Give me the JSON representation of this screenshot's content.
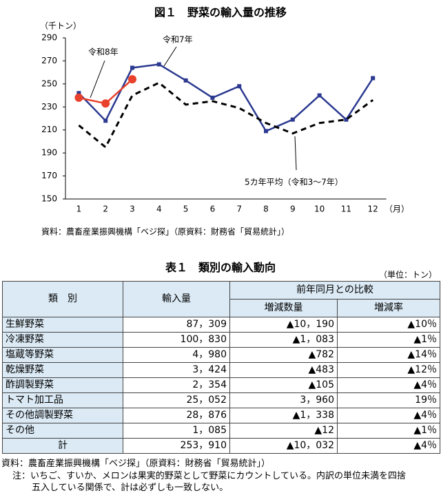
{
  "chart_data": {
    "type": "line",
    "title": "図１　野菜の輸入量の推移",
    "y_label": "（千トン）",
    "x_label": "（月）",
    "categories": [
      "1",
      "2",
      "3",
      "4",
      "5",
      "6",
      "7",
      "8",
      "9",
      "10",
      "11",
      "12"
    ],
    "ylim": [
      150,
      290
    ],
    "yticks": [
      150,
      170,
      190,
      210,
      230,
      250,
      270,
      290
    ],
    "series": [
      {
        "name": "令和7年",
        "color": "#2b3990",
        "marker": "square",
        "dash": false,
        "values": [
          242,
          218,
          264,
          267,
          253,
          238,
          248,
          209,
          219,
          240,
          219,
          255
        ]
      },
      {
        "name": "令和8年",
        "color": "#e8412c",
        "marker": "circle",
        "dash": false,
        "values": [
          238,
          233,
          254,
          null,
          null,
          null,
          null,
          null,
          null,
          null,
          null,
          null
        ]
      },
      {
        "name": "5カ年平均（令和3～7年）",
        "color": "#000000",
        "marker": "none",
        "dash": true,
        "values": [
          214,
          195,
          240,
          251,
          232,
          235,
          229,
          216,
          207,
          216,
          219,
          236
        ]
      }
    ],
    "source": "資料：農畜産業振興機構「ベジ探」（原資料：財務省「貿易統計」）"
  },
  "table": {
    "title": "表１　類別の輸入動向",
    "unit": "（単位：トン）",
    "header": {
      "category": "類　別",
      "quantity": "輸入量",
      "compare": "前年同月との比較",
      "change": "増減数量",
      "rate": "増減率"
    },
    "rows": [
      [
        "生鮮野菜",
        "87，309",
        "▲10，190",
        "▲10％"
      ],
      [
        "冷凍野菜",
        "100，830",
        "▲1，083",
        "▲1％"
      ],
      [
        "塩蔵等野菜",
        "4，980",
        "▲782",
        "▲14％"
      ],
      [
        "乾燥野菜",
        "3，424",
        "▲483",
        "▲12％"
      ],
      [
        "酢調製野菜",
        "2，354",
        "▲105",
        "▲4％"
      ],
      [
        "トマト加工品",
        "25，052",
        "3，960",
        "19％"
      ],
      [
        "その他調製野菜",
        "28，876",
        "▲1，338",
        "▲4％"
      ],
      [
        "その他",
        "1，085",
        "▲12",
        "▲1％"
      ],
      [
        "計",
        "253，910",
        "▲10，032",
        "▲4％"
      ]
    ],
    "source": "資料：農畜産業振興機構「ベジ探」（原資料：財務省「貿易統計」）",
    "note": [
      "注：いちご、すいか、メロンは果実的野菜として野菜にカウントしている。内訳の単位未満を四捨",
      "五入している関係で、計は必ずしも一致しない。"
    ]
  }
}
